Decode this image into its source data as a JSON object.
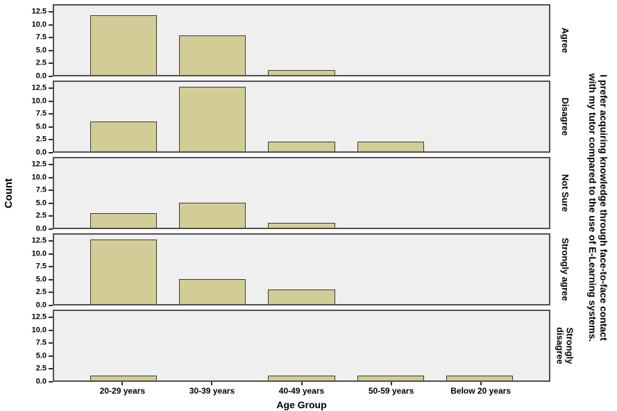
{
  "chart_data": {
    "type": "bar",
    "faceted": true,
    "categories": [
      "20-29 years",
      "30-39 years",
      "40-49 years",
      "50-59 years",
      "Below 20 years"
    ],
    "panels": [
      {
        "label": "Agree",
        "values": [
          12,
          8,
          1,
          0,
          0
        ]
      },
      {
        "label": "Disagree",
        "values": [
          6,
          13,
          2,
          2,
          0
        ]
      },
      {
        "label": "Not Sure",
        "values": [
          3,
          5,
          1,
          0,
          0
        ]
      },
      {
        "label": "Strongly agree",
        "values": [
          13,
          5,
          3,
          0,
          0
        ]
      },
      {
        "label": "Strongly disagree",
        "values": [
          1,
          0,
          1,
          1,
          1
        ]
      }
    ],
    "xlabel": "Age Group",
    "ylabel": "Count",
    "yticks": [
      0.0,
      2.5,
      5.0,
      7.5,
      10.0,
      12.5
    ],
    "ylim": [
      0,
      14
    ],
    "right_title_lines": [
      "I prefer acquiring knowledge through face-to-face contact",
      "with my tutor compared to the use of E-Learning systems."
    ],
    "grid": false,
    "legend": "none",
    "bar_color": "#d2cd96",
    "bar_border_color": "#3a3a2c",
    "panel_bg": "#efefef",
    "panel_border": "#4f4f4f"
  }
}
